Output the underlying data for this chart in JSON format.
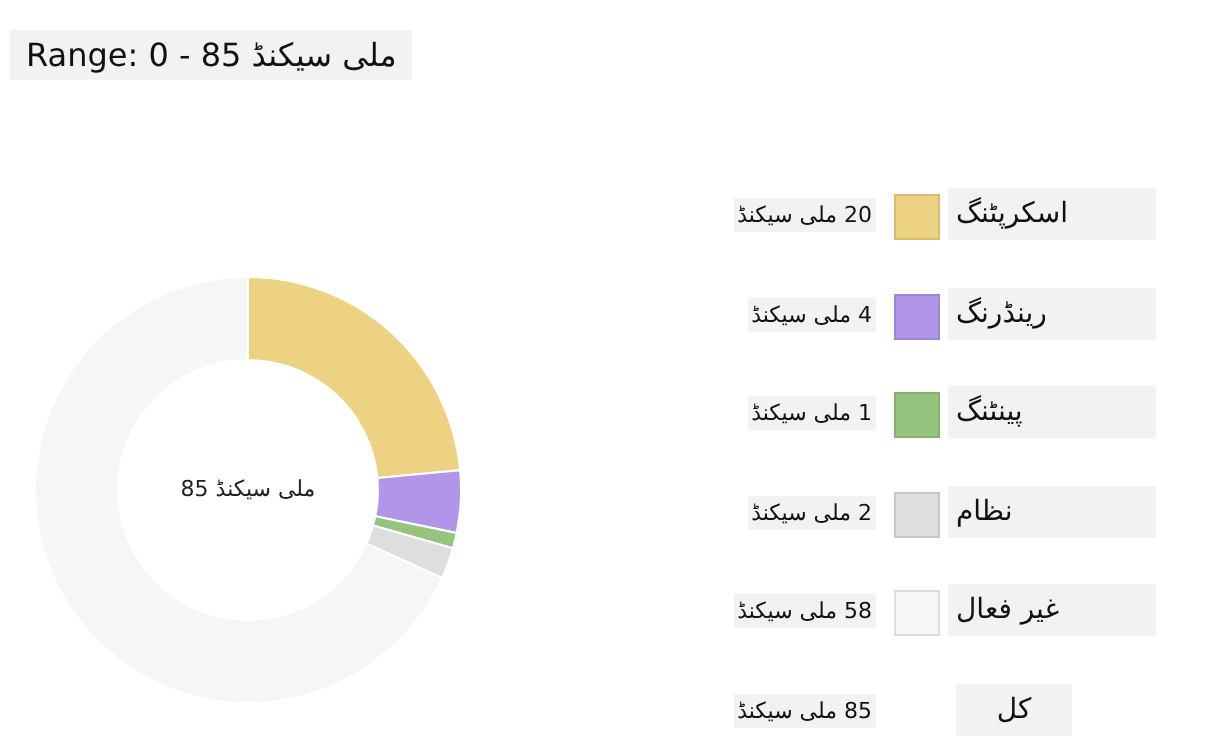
{
  "chart_data": {
    "type": "donut",
    "title": "Range: 0 - 85 ملی سیکنڈ",
    "categories": [
      "اسکرپٹنگ",
      "رینڈرنگ",
      "پینٹنگ",
      "نظام",
      "غیر فعال"
    ],
    "values": [
      20,
      4,
      1,
      2,
      58
    ],
    "colors": [
      "#eed283",
      "#b195e8",
      "#94c47e",
      "#dedede",
      "#f6f6f6"
    ],
    "value_labels": [
      "20 ملی سیکنڈ",
      "4 ملی سیکنڈ",
      "1 ملی سیکنڈ",
      "2 ملی سیکنڈ",
      "58 ملی سیکنڈ"
    ],
    "annotations": [
      "85 ملی سیکنڈ",
      "کل",
      "85 ملی سیکنڈ"
    ],
    "legend": "right"
  }
}
